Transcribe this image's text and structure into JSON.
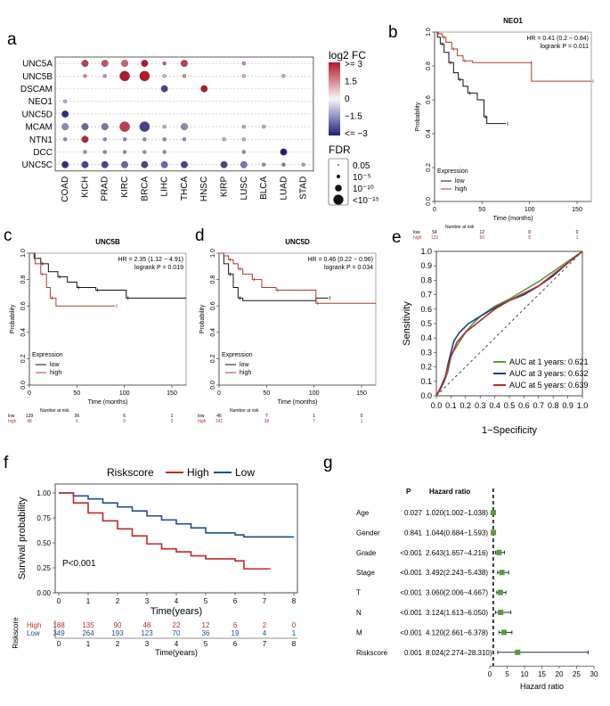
{
  "panels": {
    "a": "a",
    "b": "b",
    "c": "c",
    "d": "d",
    "e": "e",
    "f": "f",
    "g": "g"
  },
  "bubble": {
    "genes": [
      "UNC5A",
      "UNC5B",
      "DSCAM",
      "NEO1",
      "UNC5D",
      "MCAM",
      "NTN1",
      "DCC",
      "UNC5C"
    ],
    "cancers": [
      "COAD",
      "KICH",
      "PRAD",
      "KIRC",
      "BRCA",
      "LIHC",
      "THCA",
      "HNSC",
      "KIRP",
      "LUSC",
      "BLCA",
      "LUAD",
      "STAD"
    ],
    "legend_fc_title": "log2 FC",
    "legend_fc_labels": [
      ">= 3",
      "1.5",
      "0",
      "−1.5",
      "<= −3"
    ],
    "legend_fdr_title": "FDR",
    "legend_fdr_labels": [
      "0.05",
      "10⁻⁵",
      "10⁻¹⁰",
      "<10⁻¹⁵"
    ],
    "colors": {
      "high": "#b2182b",
      "mid": "#f7f7f7",
      "low": "#21207d"
    },
    "cells": [
      {
        "g": 0,
        "c": 1,
        "fc": 2.5,
        "s": 2
      },
      {
        "g": 0,
        "c": 2,
        "fc": 2.2,
        "s": 2
      },
      {
        "g": 0,
        "c": 3,
        "fc": 2.0,
        "s": 2
      },
      {
        "g": 0,
        "c": 4,
        "fc": 3,
        "s": 2
      },
      {
        "g": 0,
        "c": 5,
        "fc": 2.0,
        "s": 1
      },
      {
        "g": 0,
        "c": 6,
        "fc": 2.5,
        "s": 2
      },
      {
        "g": 0,
        "c": 9,
        "fc": 1.5,
        "s": 1
      },
      {
        "g": 1,
        "c": 1,
        "fc": 1.5,
        "s": 1
      },
      {
        "g": 1,
        "c": 2,
        "fc": 1.5,
        "s": 1
      },
      {
        "g": 1,
        "c": 3,
        "fc": 3,
        "s": 3
      },
      {
        "g": 1,
        "c": 4,
        "fc": 3,
        "s": 3
      },
      {
        "g": 1,
        "c": 5,
        "fc": -0.8,
        "s": 1
      },
      {
        "g": 1,
        "c": 6,
        "fc": 1.5,
        "s": 1
      },
      {
        "g": 1,
        "c": 9,
        "fc": 1.0,
        "s": 1
      },
      {
        "g": 1,
        "c": 11,
        "fc": 1.2,
        "s": 1
      },
      {
        "g": 2,
        "c": 5,
        "fc": -2.5,
        "s": 2
      },
      {
        "g": 2,
        "c": 7,
        "fc": 3,
        "s": 2
      },
      {
        "g": 3,
        "c": 0,
        "fc": -1.0,
        "s": 1
      },
      {
        "g": 4,
        "c": 0,
        "fc": -2.8,
        "s": 2
      },
      {
        "g": 5,
        "c": 0,
        "fc": -1.5,
        "s": 2
      },
      {
        "g": 5,
        "c": 1,
        "fc": -2.0,
        "s": 2
      },
      {
        "g": 5,
        "c": 2,
        "fc": -1.8,
        "s": 2
      },
      {
        "g": 5,
        "c": 3,
        "fc": 2.5,
        "s": 3
      },
      {
        "g": 5,
        "c": 4,
        "fc": -2.5,
        "s": 3
      },
      {
        "g": 5,
        "c": 5,
        "fc": -1.0,
        "s": 1
      },
      {
        "g": 5,
        "c": 6,
        "fc": -1.5,
        "s": 2
      },
      {
        "g": 5,
        "c": 9,
        "fc": -1.0,
        "s": 1
      },
      {
        "g": 5,
        "c": 10,
        "fc": -1.0,
        "s": 1
      },
      {
        "g": 6,
        "c": 0,
        "fc": -1.5,
        "s": 1
      },
      {
        "g": 6,
        "c": 1,
        "fc": 2.8,
        "s": 2
      },
      {
        "g": 6,
        "c": 2,
        "fc": -1.5,
        "s": 1
      },
      {
        "g": 6,
        "c": 3,
        "fc": -1.5,
        "s": 1
      },
      {
        "g": 6,
        "c": 4,
        "fc": -1.5,
        "s": 1
      },
      {
        "g": 6,
        "c": 5,
        "fc": -1.5,
        "s": 1
      },
      {
        "g": 6,
        "c": 6,
        "fc": -1.5,
        "s": 1
      },
      {
        "g": 6,
        "c": 8,
        "fc": -1.0,
        "s": 1
      },
      {
        "g": 6,
        "c": 9,
        "fc": -1.0,
        "s": 1
      },
      {
        "g": 7,
        "c": 1,
        "fc": -1.5,
        "s": 1
      },
      {
        "g": 7,
        "c": 2,
        "fc": -1.5,
        "s": 1
      },
      {
        "g": 7,
        "c": 3,
        "fc": -1.5,
        "s": 1
      },
      {
        "g": 7,
        "c": 4,
        "fc": -1.5,
        "s": 1
      },
      {
        "g": 7,
        "c": 5,
        "fc": -1.5,
        "s": 1
      },
      {
        "g": 7,
        "c": 9,
        "fc": -1.5,
        "s": 1
      },
      {
        "g": 7,
        "c": 11,
        "fc": -3,
        "s": 2
      },
      {
        "g": 8,
        "c": 0,
        "fc": -2.8,
        "s": 2
      },
      {
        "g": 8,
        "c": 1,
        "fc": -2.5,
        "s": 2
      },
      {
        "g": 8,
        "c": 2,
        "fc": -2.5,
        "s": 2
      },
      {
        "g": 8,
        "c": 3,
        "fc": -2.0,
        "s": 2
      },
      {
        "g": 8,
        "c": 4,
        "fc": -2.5,
        "s": 2
      },
      {
        "g": 8,
        "c": 5,
        "fc": -2.0,
        "s": 2
      },
      {
        "g": 8,
        "c": 6,
        "fc": -2.5,
        "s": 2
      },
      {
        "g": 8,
        "c": 8,
        "fc": -2.5,
        "s": 2
      },
      {
        "g": 8,
        "c": 9,
        "fc": -1.8,
        "s": 2
      },
      {
        "g": 8,
        "c": 10,
        "fc": -1.5,
        "s": 1
      },
      {
        "g": 8,
        "c": 11,
        "fc": -1.8,
        "s": 1
      },
      {
        "g": 8,
        "c": 12,
        "fc": -1.2,
        "s": 1
      }
    ]
  },
  "km": {
    "b": {
      "title": "NEO1",
      "hr": "HR = 0.41 (0.2 − 0.84)",
      "p": "logrank P = 0.011",
      "risk_low": [
        "54",
        "12",
        "0",
        "0"
      ],
      "risk_high": [
        "133",
        "50",
        "8",
        "1"
      ],
      "low_pts": [
        [
          0,
          1.0
        ],
        [
          3,
          0.97
        ],
        [
          6,
          0.93
        ],
        [
          10,
          0.88
        ],
        [
          15,
          0.82
        ],
        [
          20,
          0.76
        ],
        [
          25,
          0.72
        ],
        [
          30,
          0.68
        ],
        [
          35,
          0.64
        ],
        [
          45,
          0.6
        ],
        [
          52,
          0.5
        ],
        [
          55,
          0.46
        ],
        [
          75,
          0.46
        ]
      ],
      "high_pts": [
        [
          0,
          1.0
        ],
        [
          4,
          0.99
        ],
        [
          8,
          0.97
        ],
        [
          12,
          0.94
        ],
        [
          18,
          0.9
        ],
        [
          24,
          0.86
        ],
        [
          30,
          0.83
        ],
        [
          40,
          0.82
        ],
        [
          100,
          0.82
        ],
        [
          102,
          0.71
        ],
        [
          165,
          0.71
        ]
      ]
    },
    "c": {
      "title": "UNC5B",
      "hr": "HR = 2.35 (1.12 − 4.91)",
      "p": "logrank P = 0.019",
      "risk_low": [
        "139",
        "36",
        "6",
        "1"
      ],
      "risk_high": [
        "48",
        "6",
        "0",
        "0"
      ],
      "low_pts": [
        [
          0,
          1.0
        ],
        [
          5,
          0.96
        ],
        [
          12,
          0.92
        ],
        [
          20,
          0.86
        ],
        [
          30,
          0.82
        ],
        [
          40,
          0.78
        ],
        [
          50,
          0.74
        ],
        [
          60,
          0.74
        ],
        [
          70,
          0.72
        ],
        [
          100,
          0.72
        ],
        [
          102,
          0.66
        ],
        [
          165,
          0.66
        ]
      ],
      "high_pts": [
        [
          0,
          1.0
        ],
        [
          6,
          0.92
        ],
        [
          12,
          0.84
        ],
        [
          18,
          0.74
        ],
        [
          22,
          0.66
        ],
        [
          28,
          0.6
        ],
        [
          90,
          0.6
        ]
      ]
    },
    "d": {
      "title": "UNC5D",
      "hr": "HR = 0.46 (0.22 − 0.96)",
      "p": "logrank P = 0.034",
      "risk_low": [
        "46",
        "7",
        "1",
        "0"
      ],
      "risk_high": [
        "141",
        "38",
        "7",
        "1"
      ],
      "low_pts": [
        [
          0,
          1.0
        ],
        [
          5,
          0.92
        ],
        [
          10,
          0.84
        ],
        [
          15,
          0.74
        ],
        [
          20,
          0.66
        ],
        [
          25,
          0.64
        ],
        [
          100,
          0.64
        ],
        [
          102,
          0.66
        ],
        [
          115,
          0.66
        ]
      ],
      "high_pts": [
        [
          0,
          1.0
        ],
        [
          5,
          0.98
        ],
        [
          10,
          0.95
        ],
        [
          15,
          0.92
        ],
        [
          20,
          0.88
        ],
        [
          25,
          0.84
        ],
        [
          35,
          0.8
        ],
        [
          45,
          0.74
        ],
        [
          60,
          0.72
        ],
        [
          100,
          0.72
        ],
        [
          102,
          0.62
        ],
        [
          165,
          0.62
        ]
      ]
    },
    "xlabel": "Time (months)",
    "ylabel": "Probability",
    "legend_title": "Expression",
    "legend_low": "low",
    "legend_high": "high",
    "risk_title": "Number at risk",
    "row_low": "low",
    "row_high": "high",
    "xticks": [
      "0",
      "50",
      "100",
      "150"
    ],
    "yticks": [
      "0.0",
      "0.2",
      "0.4",
      "0.6",
      "0.8",
      "1.0"
    ],
    "colors": {
      "low": "#111111",
      "high": "#b03a2e"
    }
  },
  "roc": {
    "xlabel": "1−Specificity",
    "ylabel": "Sensitivity",
    "ticks": [
      "0.0",
      "0.1",
      "0.2",
      "0.3",
      "0.4",
      "0.5",
      "0.6",
      "0.7",
      "0.8",
      "0.9",
      "1.0"
    ],
    "legend": [
      "AUC at 1 years: 0.621",
      "AUC at 3 years: 0.632",
      "AUC at 5 years: 0.639"
    ],
    "colors": [
      "#5a9a3a",
      "#1f3e8f",
      "#b22d25"
    ],
    "curves": [
      [
        [
          0,
          0
        ],
        [
          0.02,
          0.04
        ],
        [
          0.05,
          0.09
        ],
        [
          0.08,
          0.17
        ],
        [
          0.1,
          0.28
        ],
        [
          0.15,
          0.36
        ],
        [
          0.2,
          0.44
        ],
        [
          0.25,
          0.5
        ],
        [
          0.3,
          0.55
        ],
        [
          0.4,
          0.62
        ],
        [
          0.5,
          0.67
        ],
        [
          0.6,
          0.73
        ],
        [
          0.7,
          0.79
        ],
        [
          0.8,
          0.86
        ],
        [
          0.9,
          0.93
        ],
        [
          1,
          1
        ]
      ],
      [
        [
          0,
          0
        ],
        [
          0.03,
          0.05
        ],
        [
          0.06,
          0.12
        ],
        [
          0.08,
          0.22
        ],
        [
          0.12,
          0.38
        ],
        [
          0.16,
          0.44
        ],
        [
          0.22,
          0.5
        ],
        [
          0.3,
          0.55
        ],
        [
          0.4,
          0.61
        ],
        [
          0.5,
          0.66
        ],
        [
          0.6,
          0.7
        ],
        [
          0.7,
          0.76
        ],
        [
          0.8,
          0.83
        ],
        [
          0.9,
          0.92
        ],
        [
          1,
          1
        ]
      ],
      [
        [
          0,
          0
        ],
        [
          0.03,
          0.06
        ],
        [
          0.06,
          0.13
        ],
        [
          0.1,
          0.27
        ],
        [
          0.14,
          0.37
        ],
        [
          0.2,
          0.44
        ],
        [
          0.25,
          0.48
        ],
        [
          0.3,
          0.52
        ],
        [
          0.4,
          0.6
        ],
        [
          0.5,
          0.66
        ],
        [
          0.6,
          0.71
        ],
        [
          0.7,
          0.76
        ],
        [
          0.8,
          0.84
        ],
        [
          0.9,
          0.92
        ],
        [
          1,
          1
        ]
      ]
    ]
  },
  "risk": {
    "legend_title": "Riskscore",
    "high": "High",
    "low": "Low",
    "ylabel": "Survival probability",
    "xlabel": "Time(years)",
    "pval": "P<0.001",
    "yticks": [
      "0.00",
      "0.25",
      "0.50",
      "0.75",
      "1.00"
    ],
    "xticks": [
      "0",
      "1",
      "2",
      "3",
      "4",
      "5",
      "6",
      "7",
      "8"
    ],
    "table_title": "Riskscore",
    "row_high": "High",
    "row_low": "Low",
    "counts_high": [
      "188",
      "135",
      "90",
      "48",
      "22",
      "12",
      "6",
      "2",
      "0"
    ],
    "counts_low": [
      "349",
      "264",
      "193",
      "123",
      "70",
      "36",
      "19",
      "4",
      "1"
    ],
    "colors": {
      "high": "#c3282a",
      "low": "#1d4f91"
    },
    "high_pts": [
      [
        0,
        1.0
      ],
      [
        0.5,
        0.9
      ],
      [
        1,
        0.8
      ],
      [
        1.5,
        0.72
      ],
      [
        2,
        0.64
      ],
      [
        2.5,
        0.57
      ],
      [
        3,
        0.49
      ],
      [
        3.5,
        0.44
      ],
      [
        4,
        0.41
      ],
      [
        4.5,
        0.37
      ],
      [
        5,
        0.34
      ],
      [
        6,
        0.32
      ],
      [
        6.3,
        0.24
      ],
      [
        7.2,
        0.24
      ]
    ],
    "low_pts": [
      [
        0,
        1.0
      ],
      [
        0.5,
        0.97
      ],
      [
        1,
        0.94
      ],
      [
        1.5,
        0.9
      ],
      [
        2,
        0.86
      ],
      [
        2.5,
        0.82
      ],
      [
        3,
        0.77
      ],
      [
        3.5,
        0.73
      ],
      [
        4,
        0.69
      ],
      [
        4.5,
        0.65
      ],
      [
        5,
        0.6
      ],
      [
        6,
        0.58
      ],
      [
        6.3,
        0.56
      ],
      [
        8,
        0.56
      ]
    ]
  },
  "forest": {
    "col_p": "P",
    "col_hr": "Hazard ratio",
    "xlabel": "Hazard ratio",
    "ticks": [
      "0",
      "5",
      "10",
      "15",
      "20",
      "25",
      "30"
    ],
    "rows": [
      {
        "name": "Age",
        "p": "0.027",
        "hr": "1.020(1.002−1.038)",
        "est": 1.02,
        "lo": 1.002,
        "hi": 1.038
      },
      {
        "name": "Gender",
        "p": "0.841",
        "hr": "1.044(0.684−1.593)",
        "est": 1.044,
        "lo": 0.684,
        "hi": 1.593
      },
      {
        "name": "Grade",
        "p": "<0.001",
        "hr": "2.643(1.657−4.216)",
        "est": 2.643,
        "lo": 1.657,
        "hi": 4.216
      },
      {
        "name": "Stage",
        "p": "<0.001",
        "hr": "3.492(2.243−5.438)",
        "est": 3.492,
        "lo": 2.243,
        "hi": 5.438
      },
      {
        "name": "T",
        "p": "<0.001",
        "hr": "3.060(2.006−4.667)",
        "est": 3.06,
        "lo": 2.006,
        "hi": 4.667
      },
      {
        "name": "N",
        "p": "<0.001",
        "hr": "3.124(1.613−6.050)",
        "est": 3.124,
        "lo": 1.613,
        "hi": 6.05
      },
      {
        "name": "M",
        "p": "<0.001",
        "hr": "4.120(2.661−6.378)",
        "est": 4.12,
        "lo": 2.661,
        "hi": 6.378
      },
      {
        "name": "Riskscore",
        "p": "0.001",
        "hr": "8.024(2.274−28.310)",
        "est": 8.024,
        "lo": 2.274,
        "hi": 28.31
      }
    ],
    "color": "#5a9a3a"
  }
}
